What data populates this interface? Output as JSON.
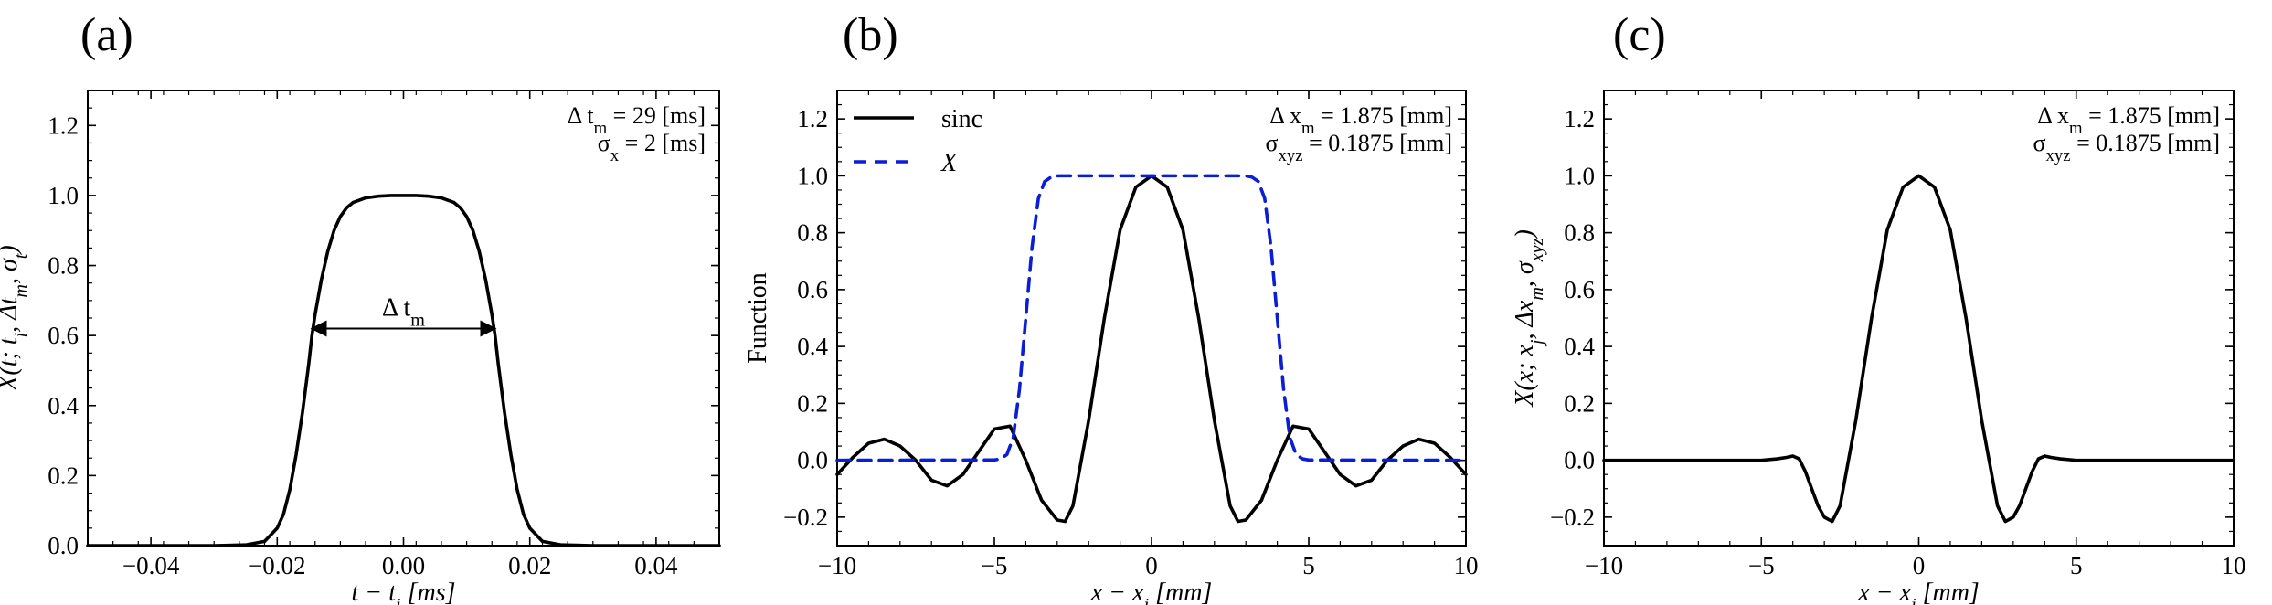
{
  "chart_data": [
    {
      "type": "line",
      "panel_label": "(a)",
      "xlabel": "t − t_i [ms]",
      "ylabel": "X(t; t_i, Δt_m, σ_t)",
      "xlim": [
        -0.05,
        0.05
      ],
      "ylim": [
        0.0,
        1.3
      ],
      "xticks": [
        -0.04,
        -0.02,
        0.0,
        0.02,
        0.04
      ],
      "xtick_labels": [
        "−0.04",
        "−0.02",
        "0.00",
        "0.02",
        "0.04"
      ],
      "yticks": [
        0.0,
        0.2,
        0.4,
        0.6,
        0.8,
        1.0,
        1.2
      ],
      "ytick_labels": [
        "0.0",
        "0.2",
        "0.4",
        "0.6",
        "0.8",
        "1.0",
        "1.2"
      ],
      "grid": false,
      "annotations": [
        "Δ t_m = 29 [ms]",
        "σ_x = 2 [ms]"
      ],
      "arrow_label": "Δ t_m",
      "arrow": {
        "x_from": -0.0145,
        "x_to": 0.0145,
        "y": 0.62
      },
      "series": [
        {
          "color": "#000000",
          "style": "solid",
          "x": [
            -0.05,
            -0.04,
            -0.03,
            -0.025,
            -0.022,
            -0.02,
            -0.019,
            -0.018,
            -0.017,
            -0.016,
            -0.015,
            -0.0145,
            -0.014,
            -0.013,
            -0.012,
            -0.011,
            -0.01,
            -0.009,
            -0.008,
            -0.006,
            -0.004,
            -0.002,
            0.0,
            0.002,
            0.004,
            0.006,
            0.008,
            0.009,
            0.01,
            0.011,
            0.012,
            0.013,
            0.014,
            0.0145,
            0.015,
            0.016,
            0.017,
            0.018,
            0.019,
            0.02,
            0.022,
            0.025,
            0.03,
            0.04,
            0.05
          ],
          "y": [
            0.0,
            0.0,
            0.0,
            0.002,
            0.012,
            0.05,
            0.09,
            0.16,
            0.26,
            0.38,
            0.52,
            0.6,
            0.66,
            0.76,
            0.84,
            0.9,
            0.94,
            0.965,
            0.98,
            0.993,
            0.998,
            1.0,
            1.0,
            1.0,
            0.998,
            0.993,
            0.98,
            0.965,
            0.94,
            0.9,
            0.84,
            0.76,
            0.66,
            0.6,
            0.52,
            0.38,
            0.26,
            0.16,
            0.09,
            0.05,
            0.012,
            0.002,
            0.0,
            0.0,
            0.0
          ]
        }
      ]
    },
    {
      "type": "line",
      "panel_label": "(b)",
      "xlabel": "x − x_j [mm]",
      "ylabel": "Function",
      "xlim": [
        -10,
        10
      ],
      "ylim": [
        -0.3,
        1.3
      ],
      "xticks": [
        -10,
        -5,
        0,
        5,
        10
      ],
      "xtick_labels": [
        "−10",
        "−5",
        "0",
        "5",
        "10"
      ],
      "yticks": [
        -0.2,
        0.0,
        0.2,
        0.4,
        0.6,
        0.8,
        1.0,
        1.2
      ],
      "ytick_labels": [
        "−0.2",
        "0.0",
        "0.2",
        "0.4",
        "0.6",
        "0.8",
        "1.0",
        "1.2"
      ],
      "grid": false,
      "legend_placement": "top-left",
      "annotations": [
        "Δ x_m = 1.875 [mm]",
        "σ_xyz = 0.1875 [mm]"
      ],
      "series": [
        {
          "name": "sinc",
          "color": "#000000",
          "style": "solid",
          "x": [
            -10,
            -9.5,
            -9,
            -8.5,
            -8,
            -7.5,
            -7,
            -6.5,
            -6,
            -5.5,
            -5,
            -4.5,
            -4,
            -3.5,
            -3,
            -2.75,
            -2.5,
            -2,
            -1.5,
            -1,
            -0.5,
            0,
            0.5,
            1,
            1.5,
            2,
            2.5,
            2.75,
            3,
            3.5,
            4,
            4.5,
            5,
            5.5,
            6,
            6.5,
            7,
            7.5,
            8,
            8.5,
            9,
            9.5,
            10
          ],
          "y": [
            -0.05,
            0.01,
            0.06,
            0.074,
            0.05,
            0.0,
            -0.07,
            -0.09,
            -0.05,
            0.03,
            0.11,
            0.12,
            0.0,
            -0.14,
            -0.21,
            -0.215,
            -0.16,
            0.14,
            0.5,
            0.81,
            0.96,
            1.0,
            0.96,
            0.81,
            0.5,
            0.14,
            -0.16,
            -0.215,
            -0.21,
            -0.14,
            0.0,
            0.12,
            0.11,
            0.03,
            -0.05,
            -0.09,
            -0.07,
            0.0,
            0.05,
            0.074,
            0.06,
            0.01,
            -0.05
          ]
        },
        {
          "name": "X",
          "color": "#0a1ed6",
          "style": "dashed",
          "x": [
            -10,
            -5,
            -4.8,
            -4.6,
            -4.4,
            -4.2,
            -4,
            -3.8,
            -3.6,
            -3.4,
            -3.2,
            -3,
            0,
            3,
            3.2,
            3.4,
            3.6,
            3.8,
            4,
            4.2,
            4.4,
            4.6,
            4.8,
            5,
            10
          ],
          "y": [
            0,
            0.001,
            0.005,
            0.02,
            0.08,
            0.25,
            0.5,
            0.75,
            0.92,
            0.98,
            0.995,
            1.0,
            1.0,
            1.0,
            0.995,
            0.98,
            0.92,
            0.75,
            0.5,
            0.25,
            0.08,
            0.02,
            0.005,
            0.001,
            0
          ]
        }
      ]
    },
    {
      "type": "line",
      "panel_label": "(c)",
      "xlabel": "x − x_j [mm]",
      "ylabel": "X(x; x_j, Δx_m, σ_xyz)",
      "xlim": [
        -10,
        10
      ],
      "ylim": [
        -0.3,
        1.3
      ],
      "xticks": [
        -10,
        -5,
        0,
        5,
        10
      ],
      "xtick_labels": [
        "−10",
        "−5",
        "0",
        "5",
        "10"
      ],
      "yticks": [
        -0.2,
        0.0,
        0.2,
        0.4,
        0.6,
        0.8,
        1.0,
        1.2
      ],
      "ytick_labels": [
        "−0.2",
        "0.0",
        "0.2",
        "0.4",
        "0.6",
        "0.8",
        "1.0",
        "1.2"
      ],
      "grid": false,
      "annotations": [
        "Δ x_m = 1.875 [mm]",
        "σ_xyz = 0.1875 [mm]"
      ],
      "series": [
        {
          "color": "#000000",
          "style": "solid",
          "x": [
            -10,
            -5,
            -4.5,
            -4.2,
            -4,
            -3.8,
            -3.6,
            -3.4,
            -3.2,
            -3,
            -2.75,
            -2.5,
            -2,
            -1.5,
            -1,
            -0.5,
            0,
            0.5,
            1,
            1.5,
            2,
            2.5,
            2.75,
            3,
            3.2,
            3.4,
            3.6,
            3.8,
            4,
            4.2,
            4.5,
            5,
            10
          ],
          "y": [
            0,
            0.0,
            0.005,
            0.01,
            0.015,
            0.005,
            -0.04,
            -0.1,
            -0.16,
            -0.2,
            -0.215,
            -0.16,
            0.14,
            0.5,
            0.81,
            0.96,
            1.0,
            0.96,
            0.81,
            0.5,
            0.14,
            -0.16,
            -0.215,
            -0.2,
            -0.16,
            -0.1,
            -0.04,
            0.005,
            0.015,
            0.01,
            0.005,
            0.0,
            0
          ]
        }
      ]
    }
  ]
}
